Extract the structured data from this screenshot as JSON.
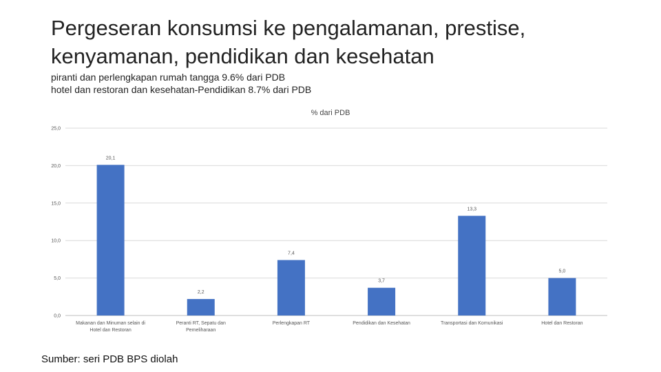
{
  "slide": {
    "title": "Pergeseran konsumsi ke pengalamanan, prestise, kenyamanan, pendidikan dan kesehatan",
    "subtitle_line1": "piranti dan perlengkapan rumah tangga 9.6% dari PDB",
    "subtitle_line2": "hotel dan restoran dan kesehatan-Pendidikan 8.7% dari PDB",
    "source": "Sumber: seri PDB BPS diolah"
  },
  "chart_data": {
    "type": "bar",
    "title": "% dari PDB",
    "categories": [
      [
        "Makanan dan Minuman selain di",
        "Hotel dan Restoran"
      ],
      [
        "Peranti RT, Sepatu dan",
        "Pemeliharaan"
      ],
      [
        "Perlengkapan RT"
      ],
      [
        "Pendidikan dan Kesehatan"
      ],
      [
        "Transportasi dan Komunikasi"
      ],
      [
        "Hotel dan Restoran"
      ]
    ],
    "values": [
      20.1,
      2.2,
      7.4,
      3.7,
      13.3,
      5.0
    ],
    "value_labels": [
      "20,1",
      "2,2",
      "7,4",
      "3,7",
      "13,3",
      "5,0"
    ],
    "y_ticks": [
      "0,0",
      "5,0",
      "10,0",
      "15,0",
      "20,0",
      "25,0"
    ],
    "ylim": [
      0,
      25
    ],
    "grid": true,
    "bar_color": "#4472c4",
    "grid_color": "#d9d9d9"
  }
}
